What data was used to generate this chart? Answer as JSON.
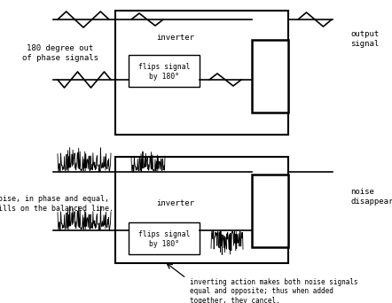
{
  "bg_color": "#ffffff",
  "line_color": "#000000",
  "fig_width": 4.42,
  "fig_height": 3.42,
  "dpi": 100,
  "top_diagram": {
    "label_left": "180 degree out\nof phase signals",
    "label_right": "output\nsignal",
    "inverter_label": "inverter",
    "inverter_box_label": "flips signal\nby 180°"
  },
  "bottom_diagram": {
    "label_left": "noise, in phase and equal,\nspills on the balanced line.",
    "label_right": "noise\ndisappears",
    "inverter_label": "inverter",
    "inverter_box_label": "flips signal\nby 180°",
    "annotation": "inverting action makes both noise signals\nequal and opposite; thus when added\ntogether, they cancel."
  }
}
